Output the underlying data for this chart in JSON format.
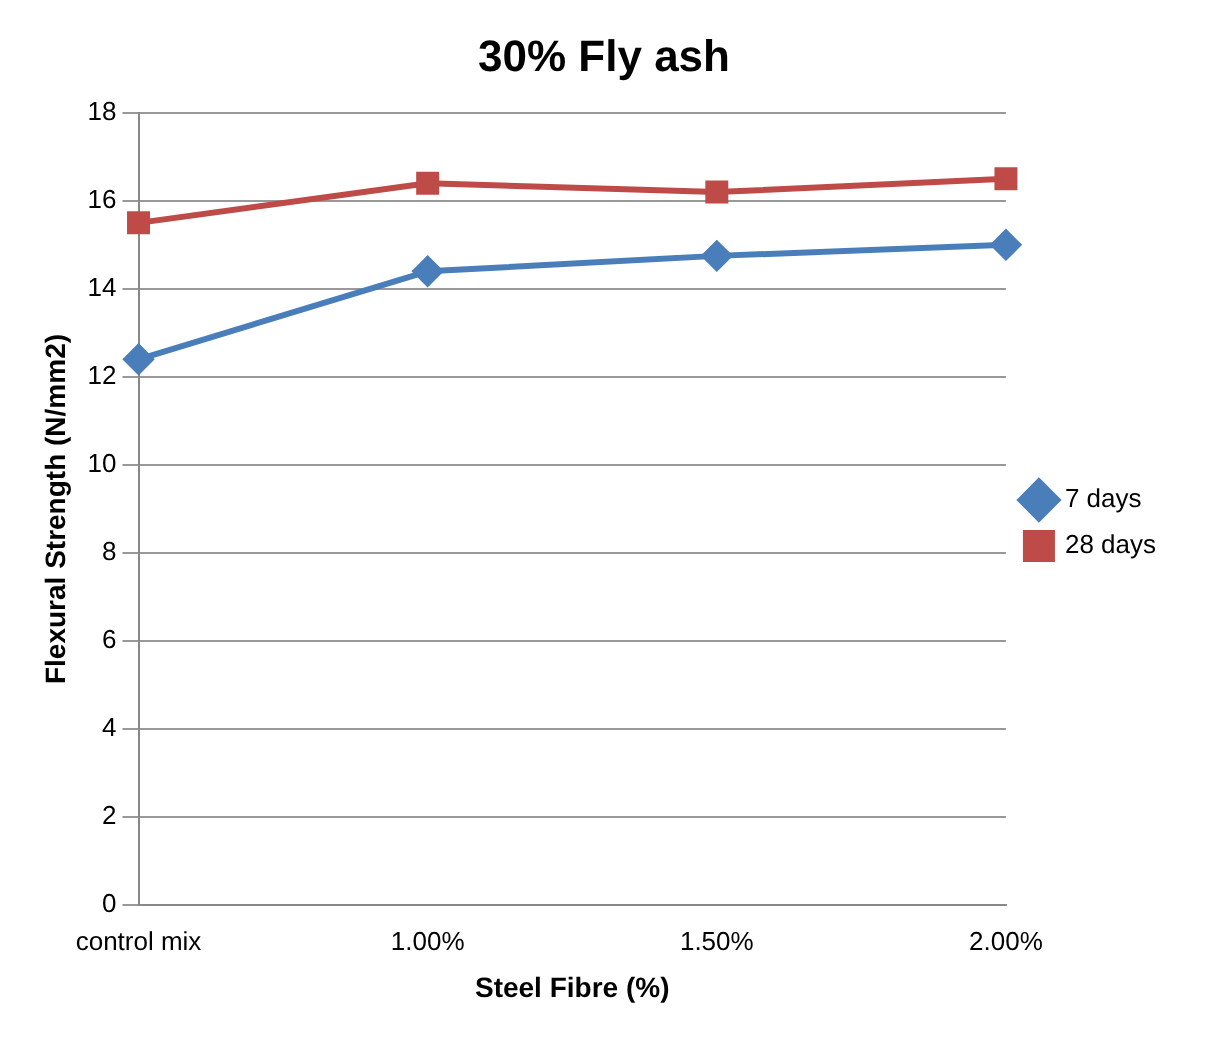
{
  "chart_data": {
    "type": "line",
    "title": "30% Fly ash",
    "xlabel": "Steel Fibre (%)",
    "ylabel": "Flexural Strength (N/mm2)",
    "categories": [
      "control mix",
      "1.00%",
      "1.50%",
      "2.00%"
    ],
    "series": [
      {
        "name": "7 days",
        "color": "#4a7ebb",
        "values": [
          12.4,
          14.4,
          14.75,
          15.0
        ],
        "marker": "diamond"
      },
      {
        "name": "28 days",
        "color": "#be4b48",
        "values": [
          15.5,
          16.4,
          16.2,
          16.5
        ],
        "marker": "square"
      }
    ],
    "ylim": [
      0,
      18
    ],
    "yticks": [
      0,
      2,
      4,
      6,
      8,
      10,
      12,
      14,
      16,
      18
    ],
    "grid": "y",
    "legend": "right",
    "line_style": "solid"
  }
}
